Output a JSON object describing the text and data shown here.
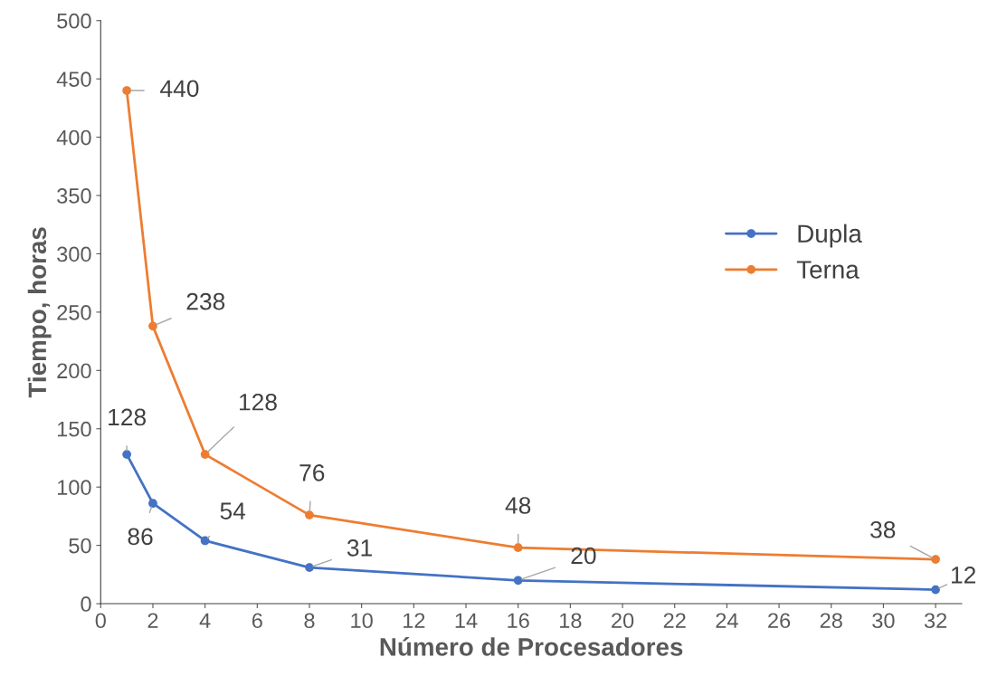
{
  "chart_data": {
    "type": "line",
    "xlabel": "Número de Procesadores",
    "ylabel": "Tiempo, horas",
    "x": [
      1,
      2,
      4,
      8,
      16,
      32
    ],
    "series": [
      {
        "name": "Dupla",
        "color": "#4472c4",
        "values": [
          128,
          86,
          54,
          31,
          20,
          12
        ]
      },
      {
        "name": "Terna",
        "color": "#ed7d31",
        "values": [
          440,
          238,
          128,
          76,
          48,
          38
        ]
      }
    ],
    "xlim": [
      0,
      33
    ],
    "ylim": [
      0,
      500
    ],
    "xticks": [
      0,
      2,
      4,
      6,
      8,
      10,
      12,
      14,
      16,
      18,
      20,
      22,
      24,
      26,
      28,
      30,
      32
    ],
    "yticks": [
      0,
      50,
      100,
      150,
      200,
      250,
      300,
      350,
      400,
      450,
      500
    ],
    "marker": "circle",
    "line_style": "solid",
    "grid": false,
    "legend": "right",
    "data_labels": true
  }
}
